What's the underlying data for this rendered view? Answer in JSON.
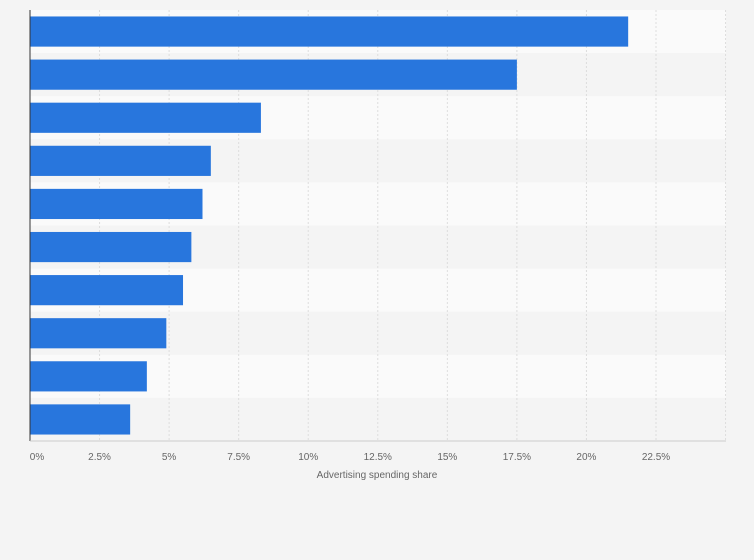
{
  "chart_data": {
    "type": "bar",
    "orientation": "horizontal",
    "title": "",
    "xlabel": "Advertising spending share",
    "ylabel": "",
    "xlim": [
      0,
      25
    ],
    "x_ticks": [
      0,
      2.5,
      5,
      7.5,
      10,
      12.5,
      15,
      17.5,
      20,
      22.5
    ],
    "x_tick_labels": [
      "0%",
      "2.5%",
      "5%",
      "7.5%",
      "10%",
      "12.5%",
      "15%",
      "17.5%",
      "20%",
      "22.5%"
    ],
    "categories": [
      "",
      "",
      "",
      "",
      "",
      "",
      "",
      "",
      "",
      ""
    ],
    "values": [
      21.5,
      17.5,
      8.3,
      6.5,
      6.2,
      5.8,
      5.5,
      4.9,
      4.2,
      3.6
    ],
    "grid": true,
    "colors": {
      "bar": "#2876dd",
      "band_even": "#fafafa",
      "band_odd": "#f4f4f4",
      "grid": "#dddddd",
      "axis": "#333333",
      "text": "#666666"
    }
  }
}
